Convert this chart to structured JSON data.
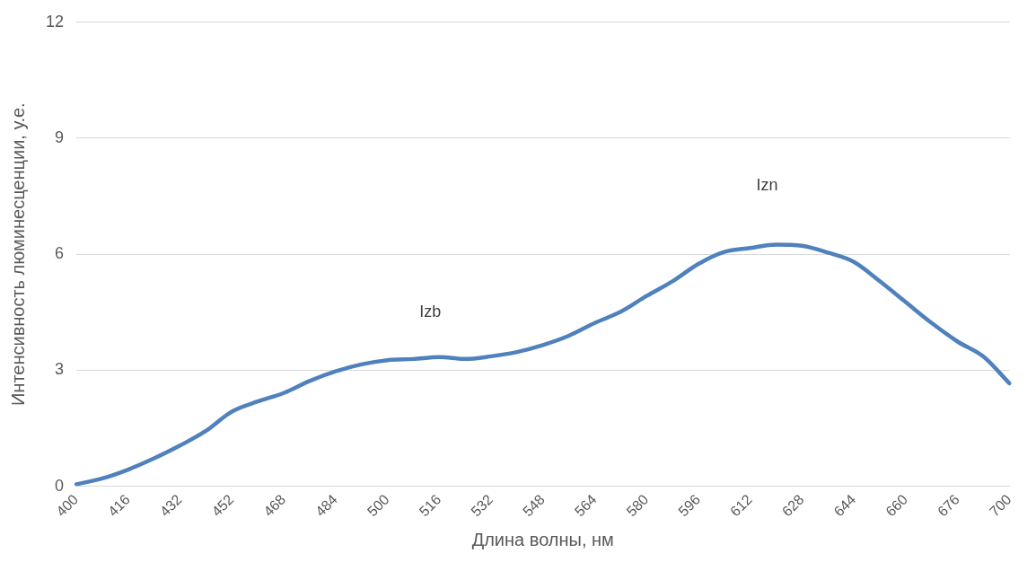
{
  "chart_data": {
    "type": "line",
    "xlabel": "Длина волны, нм",
    "ylabel": "Интенсивность люминесценции, у.е.",
    "categories": [
      "400",
      null,
      "416",
      null,
      "432",
      null,
      "452",
      null,
      "468",
      null,
      "484",
      null,
      "500",
      null,
      "516",
      null,
      "532",
      null,
      "548",
      null,
      "564",
      null,
      "580",
      null,
      "596",
      null,
      "612",
      null,
      "628",
      null,
      "644",
      null,
      "660",
      null,
      "676",
      null,
      "700"
    ],
    "series": [
      {
        "color": "#4f81bd",
        "values": [
          0.05,
          0.2,
          0.43,
          0.72,
          1.05,
          1.43,
          1.93,
          2.19,
          2.41,
          2.72,
          2.97,
          3.15,
          3.26,
          3.29,
          3.34,
          3.29,
          3.36,
          3.47,
          3.65,
          3.89,
          4.22,
          4.51,
          4.92,
          5.3,
          5.75,
          6.06,
          6.16,
          6.25,
          6.22,
          6.04,
          5.8,
          5.3,
          4.76,
          4.22,
          3.74,
          3.35,
          2.66
        ]
      }
    ],
    "ylim": [
      0,
      12
    ],
    "yticks": [
      0,
      3,
      6,
      9,
      12
    ],
    "grid": "y",
    "legend": false,
    "marker": "none",
    "line_style": "solid",
    "annotations": [
      "Izb",
      "Izn"
    ]
  }
}
